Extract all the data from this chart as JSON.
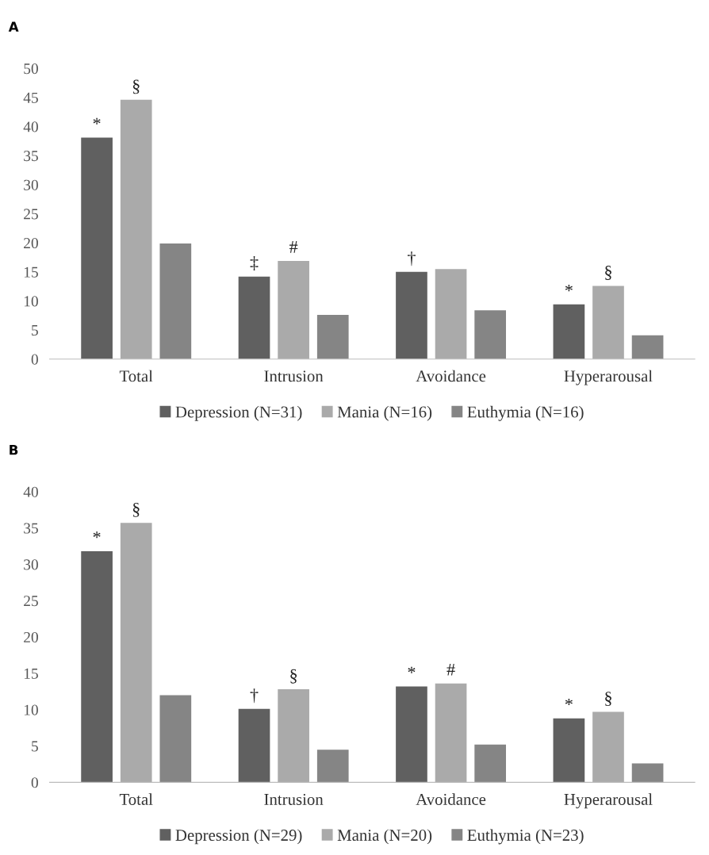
{
  "chart_data": [
    {
      "type": "bar",
      "title": "A",
      "categories": [
        "Total",
        "Intrusion",
        "Avoidance",
        "Hyperarousal"
      ],
      "series": [
        {
          "name": "Depression (N=31)",
          "color": "#606060",
          "values": [
            38.1,
            14.2,
            15.0,
            9.4
          ],
          "value_labels": [
            "*",
            "‡",
            "†",
            "*"
          ]
        },
        {
          "name": "Mania (N=16)",
          "color": "#aaaaaa",
          "values": [
            44.6,
            16.9,
            15.5,
            12.6
          ],
          "value_labels": [
            "§",
            "#",
            null,
            "§"
          ]
        },
        {
          "name": "Euthymia (N=16)",
          "color": "#858585",
          "values": [
            19.9,
            7.6,
            8.4,
            4.1
          ]
        }
      ],
      "ylim": [
        0,
        50
      ],
      "yticks": [
        0,
        5,
        10,
        15,
        20,
        25,
        30,
        35,
        40,
        45,
        50
      ],
      "legend": "bottom"
    },
    {
      "type": "bar",
      "title": "B",
      "categories": [
        "Total",
        "Intrusion",
        "Avoidance",
        "Hyperarousal"
      ],
      "series": [
        {
          "name": "Depression (N=29)",
          "color": "#606060",
          "values": [
            31.8,
            10.1,
            13.2,
            8.8
          ],
          "value_labels": [
            "*",
            "†",
            "*",
            "*"
          ]
        },
        {
          "name": "Mania (N=20)",
          "color": "#aaaaaa",
          "values": [
            35.7,
            12.8,
            13.6,
            9.7
          ],
          "value_labels": [
            "§",
            "§",
            "#",
            "§"
          ]
        },
        {
          "name": "Euthymia (N=23)",
          "color": "#858585",
          "values": [
            12.0,
            4.5,
            5.2,
            2.6
          ]
        }
      ],
      "ylim": [
        0,
        40
      ],
      "yticks": [
        0,
        5,
        10,
        15,
        20,
        25,
        30,
        35,
        40
      ],
      "legend": "bottom"
    }
  ]
}
